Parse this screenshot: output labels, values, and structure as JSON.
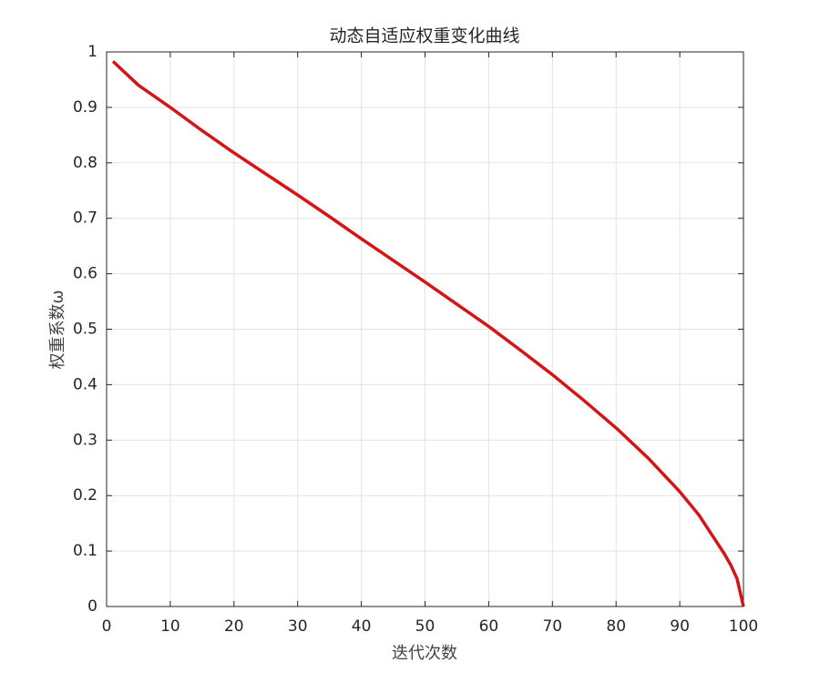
{
  "chart_data": {
    "type": "line",
    "title": "动态自适应权重变化曲线",
    "x_label": "迭代次数",
    "y_label": "权重系数ω",
    "x": [
      1,
      5,
      10,
      15,
      20,
      25,
      30,
      35,
      40,
      45,
      50,
      55,
      60,
      65,
      70,
      75,
      80,
      85,
      90,
      93,
      95,
      97,
      98,
      99,
      100
    ],
    "values": [
      0.983,
      0.94,
      0.9,
      0.858,
      0.818,
      0.78,
      0.742,
      0.703,
      0.663,
      0.624,
      0.585,
      0.545,
      0.505,
      0.462,
      0.418,
      0.371,
      0.322,
      0.268,
      0.207,
      0.165,
      0.13,
      0.095,
      0.075,
      0.05,
      0
    ],
    "color": "#d51515",
    "xlim": [
      0,
      100
    ],
    "xticks": [
      0,
      10,
      20,
      30,
      40,
      50,
      60,
      70,
      80,
      90,
      100
    ],
    "ylim": [
      0,
      1
    ],
    "yticks": [
      0,
      0.1,
      0.2,
      0.3,
      0.4,
      0.5,
      0.6,
      0.7,
      0.8,
      0.9,
      1
    ],
    "grid": true
  }
}
